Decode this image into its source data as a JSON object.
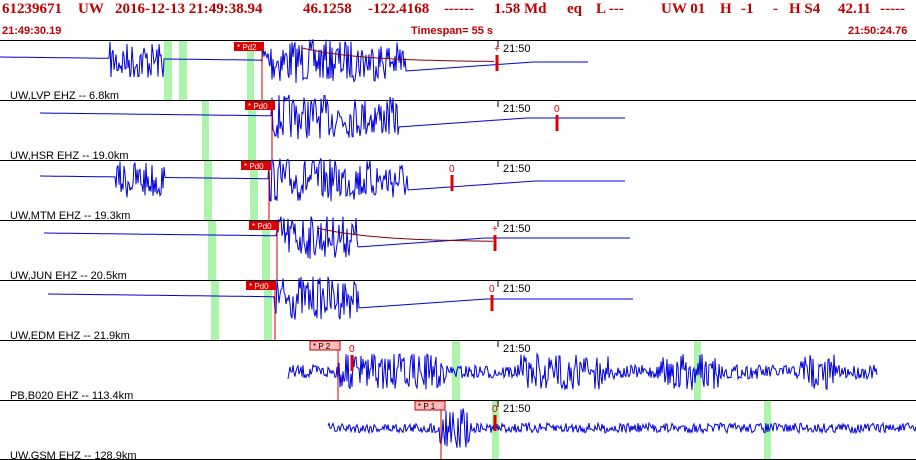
{
  "header": {
    "event_id": "61239671",
    "network": "UW",
    "origin_time": "2016-12-13 21:49:38.94",
    "latitude": "46.1258",
    "longitude": "-122.4168",
    "dashes": "------",
    "magnitude": "1.58 Md",
    "event_type": "eq",
    "location_type": "L ---",
    "auth_net": "UW 01",
    "quality": "H",
    "flag": "-1",
    "dash2": "-",
    "h_s4": "H S4",
    "value": "42.11",
    "tail_dashes": "-----"
  },
  "timebar": {
    "start_time": "21:49:30.19",
    "timespan": "Timespan=  55 s",
    "end_time": "21:50:24.76"
  },
  "minute_label": "21:50",
  "colors": {
    "header_text": "#c00000",
    "trace": "#0000dd",
    "pick_bg": "#dd0000",
    "weak_pick_bg": "#ffbbbb",
    "pick_line": "#cc0000",
    "coda_marker": "#dd0000",
    "green_window": "#aaf5aa",
    "separator": "#000000"
  },
  "panels": [
    {
      "station": "UW,LVP EHZ -- 6.8km",
      "pick": "* Pd2",
      "coda": "+"
    },
    {
      "station": "UW,HSR EHZ -- 19.0km",
      "pick": "* Pd0",
      "coda": "0"
    },
    {
      "station": "UW,MTM EHZ -- 19.3km",
      "pick": "* Pd0",
      "coda": "0"
    },
    {
      "station": "UW,JUN EHZ -- 20.5km",
      "pick": "* Pd0",
      "coda": "+"
    },
    {
      "station": "UW,EDM EHZ -- 21.9km",
      "pick": "* Pd0",
      "coda": "0"
    },
    {
      "station": "PB,B020 EHZ -- 113.4km",
      "pick": "* P 2",
      "coda": "0"
    },
    {
      "station": "UW,GSM EHZ -- 128.9km",
      "pick": "* P 1",
      "coda": "0"
    }
  ]
}
